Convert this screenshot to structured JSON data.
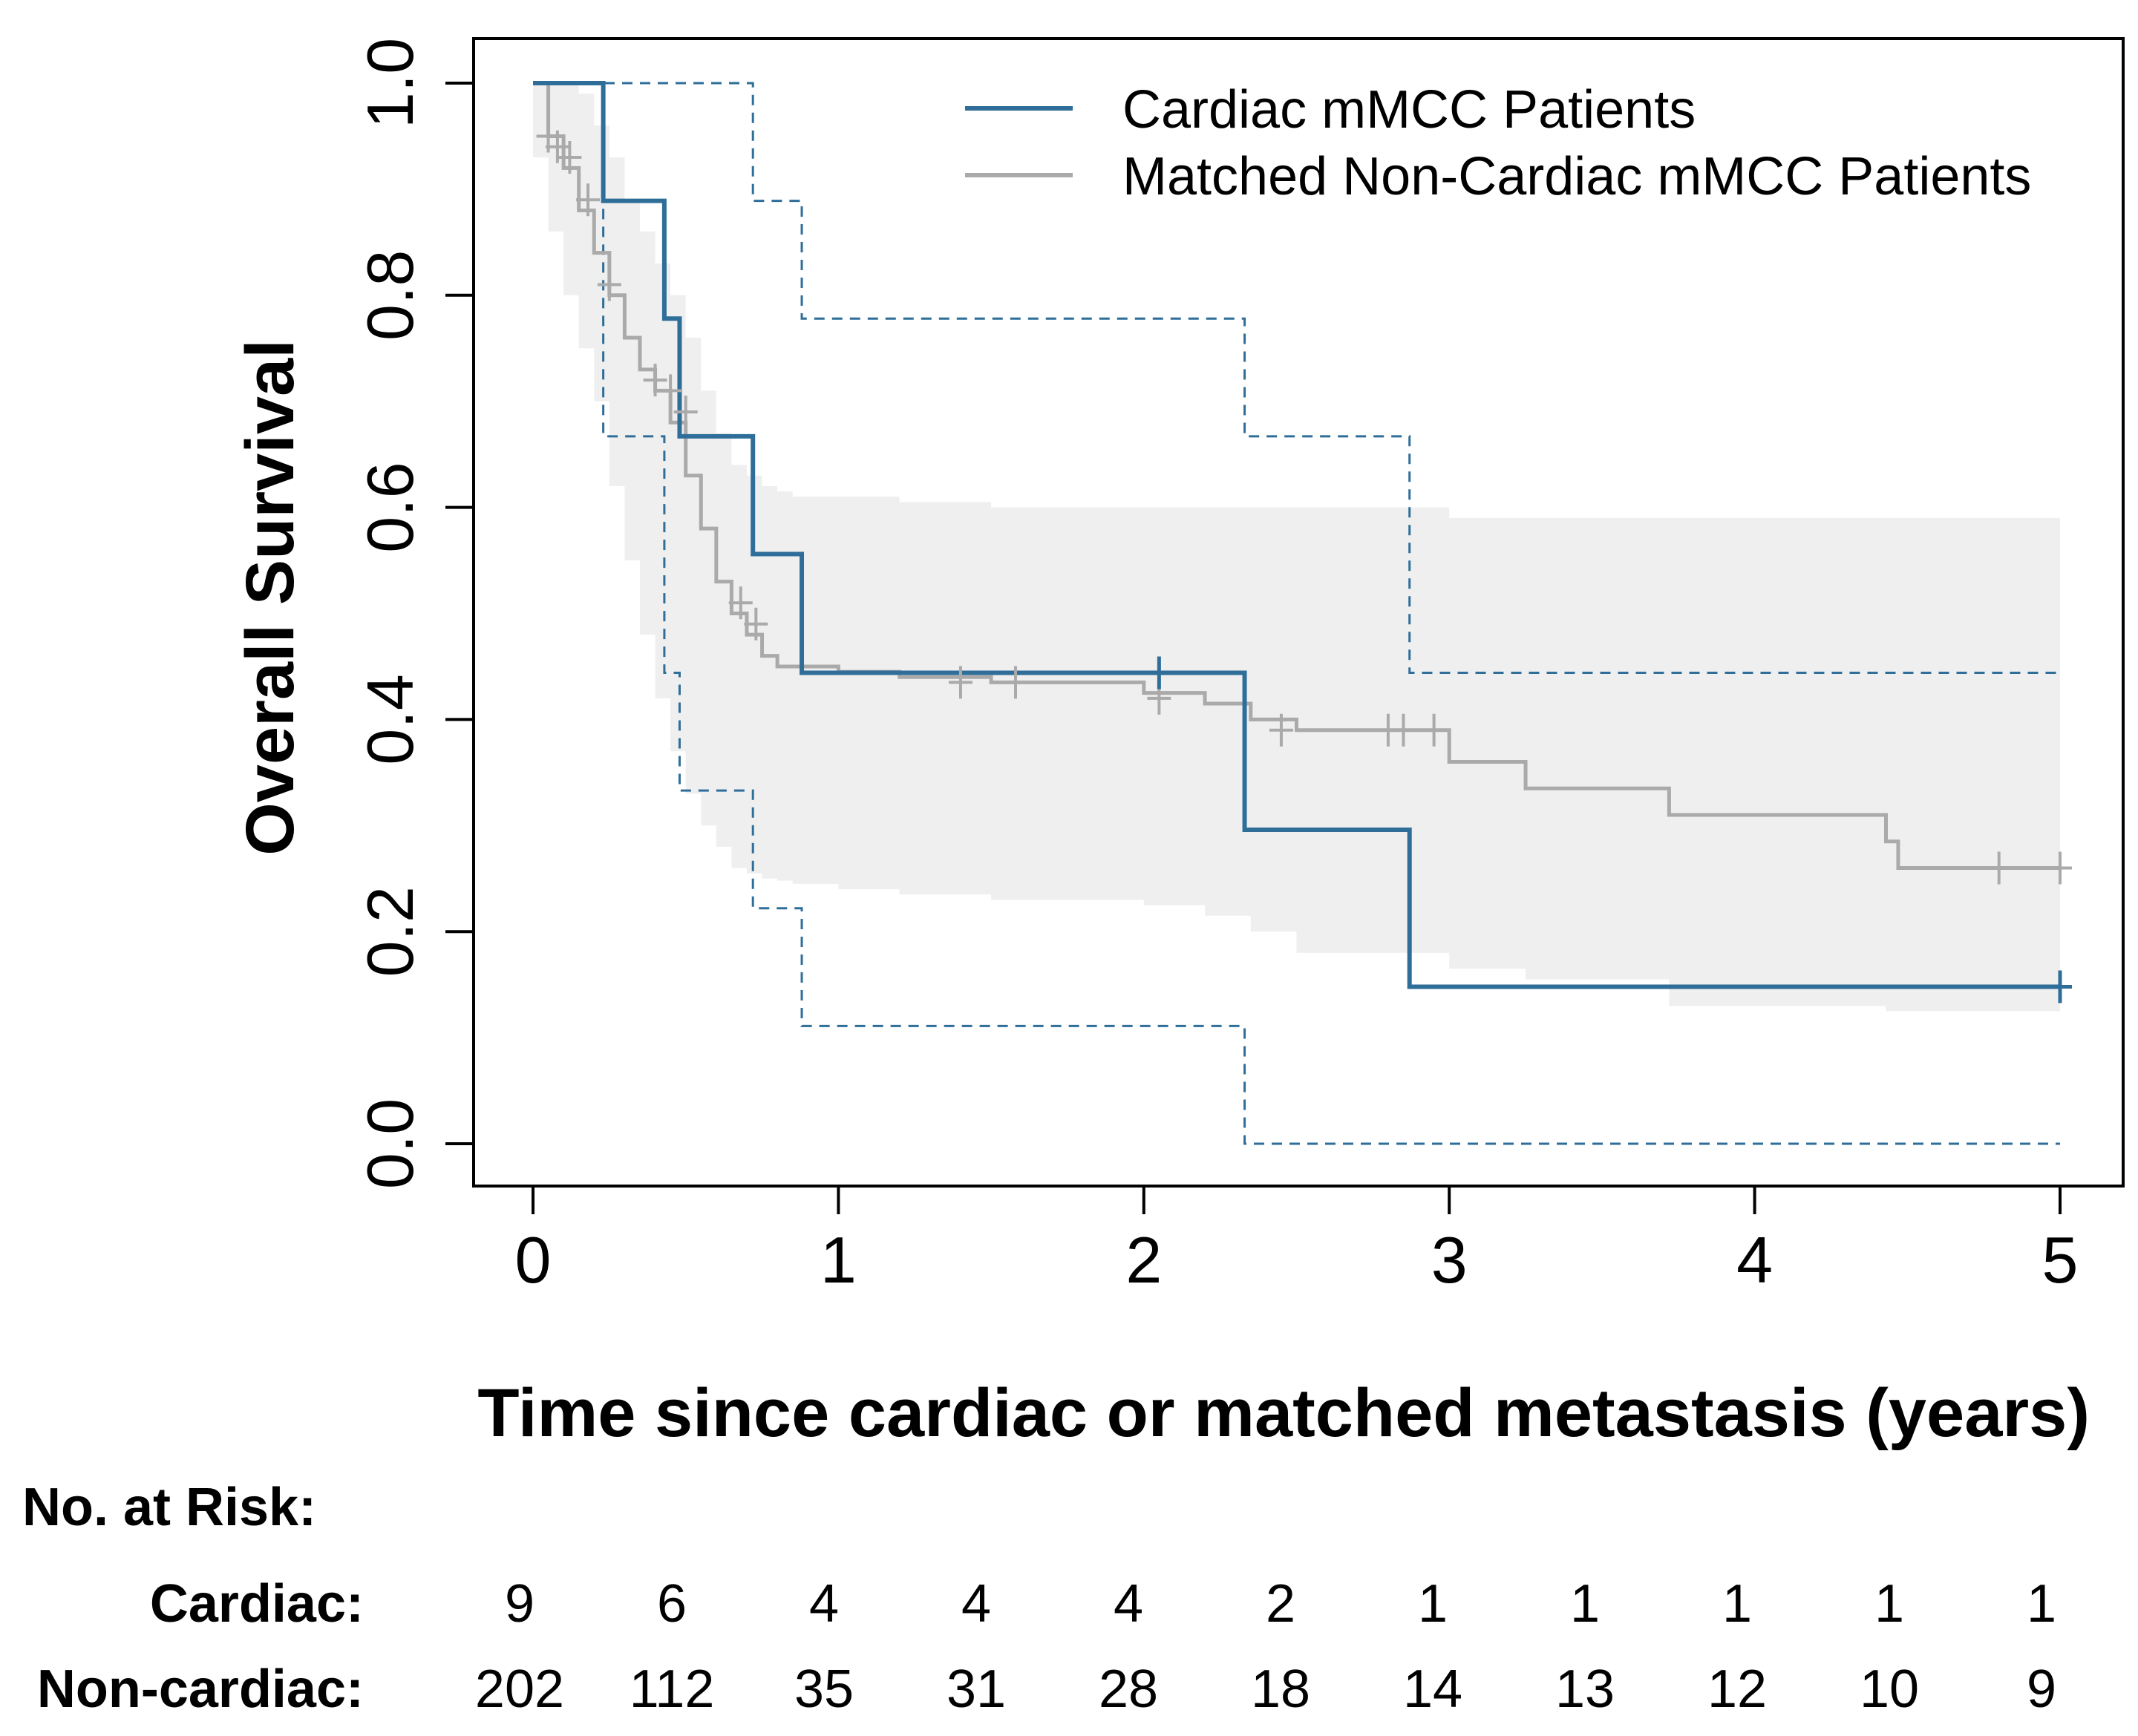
{
  "chart_data": {
    "type": "line",
    "subtype": "kaplan-meier",
    "xlabel": "Time since cardiac or matched metastasis (years)",
    "ylabel": "Overall Survival",
    "xlim": [
      0,
      5
    ],
    "ylim": [
      0,
      1
    ],
    "xticks": [
      "0",
      "1",
      "2",
      "3",
      "4",
      "5"
    ],
    "yticks": [
      "0.0",
      "0.2",
      "0.4",
      "0.6",
      "0.8",
      "1.0"
    ],
    "legend_position": "top-right",
    "colors": {
      "cardiac": "#2f6e99",
      "noncardiac": "#aaaaaa",
      "band": "#efefef"
    },
    "series": [
      {
        "name": "Cardiac mMCC Patients",
        "step_x": [
          0,
          0.23,
          0.43,
          0.48,
          0.72,
          0.88,
          2.33,
          2.87,
          5.0
        ],
        "step_y": [
          1.0,
          0.889,
          0.778,
          0.667,
          0.556,
          0.444,
          0.296,
          0.148,
          0.148
        ],
        "ci_upper_x": [
          0,
          0.72,
          0.88,
          2.33,
          2.87,
          5.0
        ],
        "ci_upper_y": [
          1.0,
          0.889,
          0.778,
          0.667,
          0.444,
          0.444
        ],
        "ci_lower_x": [
          0,
          0.23,
          0.43,
          0.48,
          0.72,
          0.88,
          2.33,
          5.0
        ],
        "ci_lower_y": [
          1.0,
          0.667,
          0.444,
          0.333,
          0.222,
          0.111,
          0.0,
          0.0
        ],
        "censor_x": [
          2.05,
          5.0
        ],
        "censor_y": [
          0.444,
          0.148
        ]
      },
      {
        "name": "Matched Non-Cardiac mMCC Patients",
        "step_x": [
          0,
          0.05,
          0.1,
          0.15,
          0.2,
          0.25,
          0.3,
          0.35,
          0.4,
          0.45,
          0.5,
          0.55,
          0.6,
          0.65,
          0.7,
          0.75,
          0.8,
          0.85,
          1.0,
          1.2,
          1.5,
          2.0,
          2.2,
          2.35,
          2.5,
          3.0,
          3.25,
          3.72,
          4.43,
          4.47,
          5.0
        ],
        "step_y": [
          1.0,
          0.95,
          0.92,
          0.88,
          0.84,
          0.8,
          0.76,
          0.73,
          0.71,
          0.68,
          0.63,
          0.58,
          0.53,
          0.5,
          0.48,
          0.46,
          0.45,
          0.45,
          0.445,
          0.44,
          0.435,
          0.425,
          0.415,
          0.4,
          0.39,
          0.36,
          0.335,
          0.31,
          0.285,
          0.26,
          0.26
        ],
        "band_upper_y": [
          1.0,
          1.0,
          1.0,
          0.99,
          0.96,
          0.93,
          0.89,
          0.86,
          0.83,
          0.8,
          0.76,
          0.71,
          0.67,
          0.64,
          0.63,
          0.62,
          0.615,
          0.61,
          0.61,
          0.605,
          0.6,
          0.6,
          0.6,
          0.6,
          0.6,
          0.59,
          0.59,
          0.59,
          0.59,
          0.59,
          0.59
        ],
        "band_lower_y": [
          1.0,
          0.93,
          0.86,
          0.8,
          0.75,
          0.7,
          0.62,
          0.55,
          0.48,
          0.42,
          0.37,
          0.33,
          0.3,
          0.28,
          0.26,
          0.255,
          0.25,
          0.248,
          0.245,
          0.24,
          0.235,
          0.23,
          0.225,
          0.215,
          0.2,
          0.18,
          0.165,
          0.155,
          0.13,
          0.125,
          0.125
        ],
        "censor_x": [
          0.05,
          0.08,
          0.12,
          0.18,
          0.25,
          0.4,
          0.45,
          0.5,
          0.68,
          0.73,
          1.4,
          1.58,
          2.05,
          2.45,
          2.8,
          2.85,
          2.95,
          4.8,
          5.0
        ],
        "censor_y": [
          0.95,
          0.94,
          0.93,
          0.89,
          0.81,
          0.72,
          0.71,
          0.69,
          0.51,
          0.49,
          0.435,
          0.435,
          0.42,
          0.39,
          0.39,
          0.39,
          0.39,
          0.26,
          0.26
        ]
      }
    ],
    "risk_table": {
      "title": "No. at Risk:",
      "times": [
        0,
        0.5,
        1,
        1.5,
        2,
        2.5,
        3,
        3.5,
        4,
        4.5,
        5
      ],
      "rows": [
        {
          "label": "Cardiac:",
          "values": [
            "9",
            "6",
            "4",
            "4",
            "4",
            "2",
            "1",
            "1",
            "1",
            "1",
            "1"
          ]
        },
        {
          "label": "Non-cardiac:",
          "values": [
            "202",
            "112",
            "35",
            "31",
            "28",
            "18",
            "14",
            "13",
            "12",
            "10",
            "9"
          ]
        }
      ]
    }
  }
}
